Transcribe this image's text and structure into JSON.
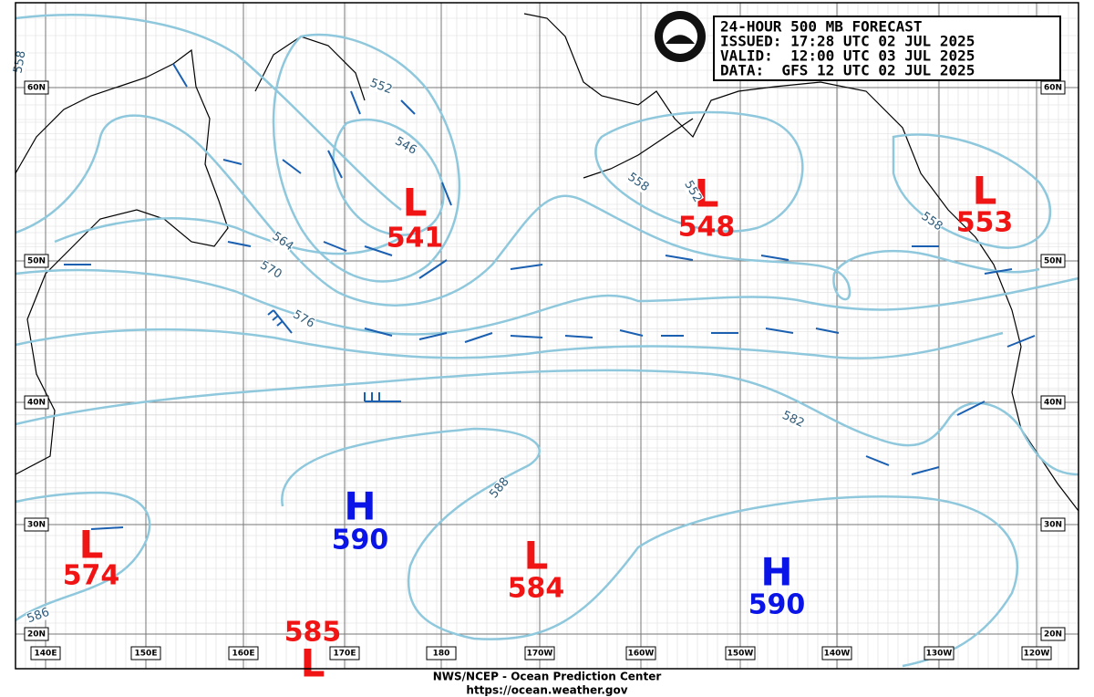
{
  "header": {
    "lines": [
      "24-HOUR 500 MB FORECAST",
      "ISSUED: 17:28 UTC 02 JUL 2025",
      "VALID:  12:00 UTC 03 JUL 2025",
      "DATA:  GFS 12 UTC 02 JUL 2025"
    ]
  },
  "centers": [
    {
      "type": "L",
      "value": 541
    },
    {
      "type": "L",
      "value": 548
    },
    {
      "type": "L",
      "value": 553
    },
    {
      "type": "L",
      "value": 574
    },
    {
      "type": "H",
      "value": 590
    },
    {
      "type": "L",
      "value": 584
    },
    {
      "type": "H",
      "value": 590
    },
    {
      "type": "L",
      "value": 585
    }
  ],
  "contour_labels": [
    558,
    552,
    546,
    564,
    570,
    576,
    558,
    552,
    558,
    582,
    588,
    586
  ],
  "latitudes": [
    "60N",
    "50N",
    "40N",
    "30N",
    "20N"
  ],
  "longitudes": [
    "140E",
    "150E",
    "160E",
    "170E",
    "180",
    "170W",
    "160W",
    "150W",
    "140W",
    "130W",
    "120W"
  ],
  "footer": {
    "agency": "NWS/NCEP - Ocean Prediction Center",
    "url": "https://ocean.weather.gov"
  }
}
